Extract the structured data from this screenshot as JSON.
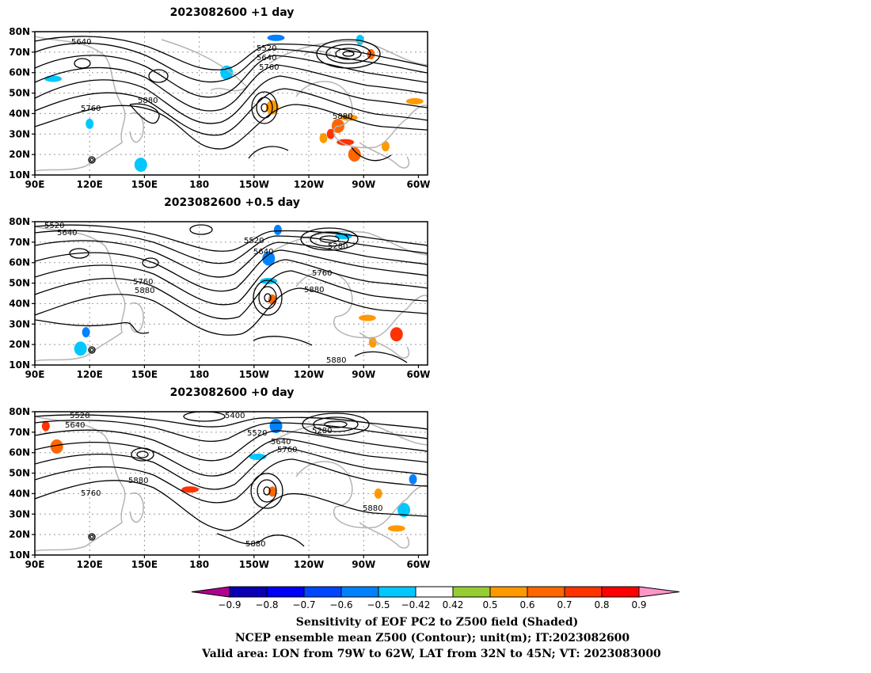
{
  "panels": [
    {
      "title": "2023082600  +1 day",
      "contour_labels": [
        "5640",
        "5520",
        "5640",
        "5760",
        "5760",
        "5880",
        "5880"
      ],
      "shading": [
        {
          "lon": -108,
          "lat": 30,
          "value": 0.7
        },
        {
          "lon": -104,
          "lat": 34,
          "value": 0.6
        },
        {
          "lon": -100,
          "lat": 26,
          "value": 0.7
        },
        {
          "lon": -112,
          "lat": 28,
          "value": 0.5
        },
        {
          "lon": -95,
          "lat": 20,
          "value": 0.6
        },
        {
          "lon": -98,
          "lat": 38,
          "value": 0.5
        },
        {
          "lon": -86,
          "lat": 69,
          "value": 0.6
        },
        {
          "lon": -140,
          "lat": 43,
          "value": 0.5
        },
        {
          "lon": -138,
          "lat": 77,
          "value": -0.6
        },
        {
          "lon": -92,
          "lat": 76,
          "value": -0.5
        },
        {
          "lon": -165,
          "lat": 60,
          "value": -0.5
        },
        {
          "lon": 100,
          "lat": 57,
          "value": -0.5
        },
        {
          "lon": 120,
          "lat": 35,
          "value": -0.5
        },
        {
          "lon": 148,
          "lat": 15,
          "value": -0.5
        },
        {
          "lon": -62,
          "lat": 46,
          "value": 0.5
        },
        {
          "lon": -78,
          "lat": 24,
          "value": 0.5
        }
      ]
    },
    {
      "title": "2023082600  +0.5 day",
      "contour_labels": [
        "5520",
        "5640",
        "5520",
        "5640",
        "5280",
        "5760",
        "5880",
        "5760",
        "5880",
        "5880"
      ],
      "shading": [
        {
          "lon": -140,
          "lat": 42,
          "value": 0.6
        },
        {
          "lon": -72,
          "lat": 25,
          "value": 0.7
        },
        {
          "lon": -88,
          "lat": 33,
          "value": 0.5
        },
        {
          "lon": -137,
          "lat": 76,
          "value": -0.6
        },
        {
          "lon": -142,
          "lat": 62,
          "value": -0.6
        },
        {
          "lon": -142,
          "lat": 51,
          "value": -0.5
        },
        {
          "lon": 118,
          "lat": 26,
          "value": -0.6
        },
        {
          "lon": 115,
          "lat": 18,
          "value": -0.5
        },
        {
          "lon": -101,
          "lat": 73,
          "value": -0.5
        },
        {
          "lon": -85,
          "lat": 21,
          "value": 0.5
        }
      ]
    },
    {
      "title": "2023082600  +0 day",
      "contour_labels": [
        "5520",
        "5640",
        "5400",
        "5520",
        "5640",
        "5280",
        "5760",
        "5880",
        "5760",
        "5880",
        "5880"
      ],
      "shading": [
        {
          "lon": 96,
          "lat": 73,
          "value": 0.7
        },
        {
          "lon": 102,
          "lat": 63,
          "value": 0.6
        },
        {
          "lon": 175,
          "lat": 42,
          "value": 0.7
        },
        {
          "lon": -140,
          "lat": 41,
          "value": 0.6
        },
        {
          "lon": -138,
          "lat": 73,
          "value": -0.6
        },
        {
          "lon": -148,
          "lat": 58,
          "value": -0.5
        },
        {
          "lon": -63,
          "lat": 47,
          "value": -0.6
        },
        {
          "lon": -68,
          "lat": 32,
          "value": -0.5
        },
        {
          "lon": -72,
          "lat": 23,
          "value": 0.5
        },
        {
          "lon": -82,
          "lat": 40,
          "value": 0.5
        }
      ]
    }
  ],
  "axes": {
    "lon_ticks": [
      "90E",
      "120E",
      "150E",
      "180",
      "150W",
      "120W",
      "90W",
      "60W"
    ],
    "lat_ticks": [
      "80N",
      "70N",
      "60N",
      "50N",
      "40N",
      "30N",
      "20N",
      "10N"
    ]
  },
  "colorbar": {
    "tick_labels": [
      "−0.9",
      "−0.8",
      "−0.7",
      "−0.6",
      "−0.5",
      "−0.42",
      "0.42",
      "0.5",
      "0.6",
      "0.7",
      "0.8",
      "0.9"
    ],
    "colors": [
      "#b0008f",
      "#0a00b4",
      "#0000f5",
      "#0046ff",
      "#0082ff",
      "#00c8ff",
      "#ffffff",
      "#96cd32",
      "#ff9900",
      "#ff6600",
      "#ff3300",
      "#ff0000",
      "#ff96c8"
    ]
  },
  "caption": {
    "line1": "Sensitivity of EOF PC2 to Z500 field (Shaded)",
    "line2": "NCEP ensemble mean Z500 (Contour); unit(m); IT:2023082600",
    "line3": "Valid area: LON from 79W to 62W, LAT from 32N to 45N; VT: 2023083000"
  }
}
